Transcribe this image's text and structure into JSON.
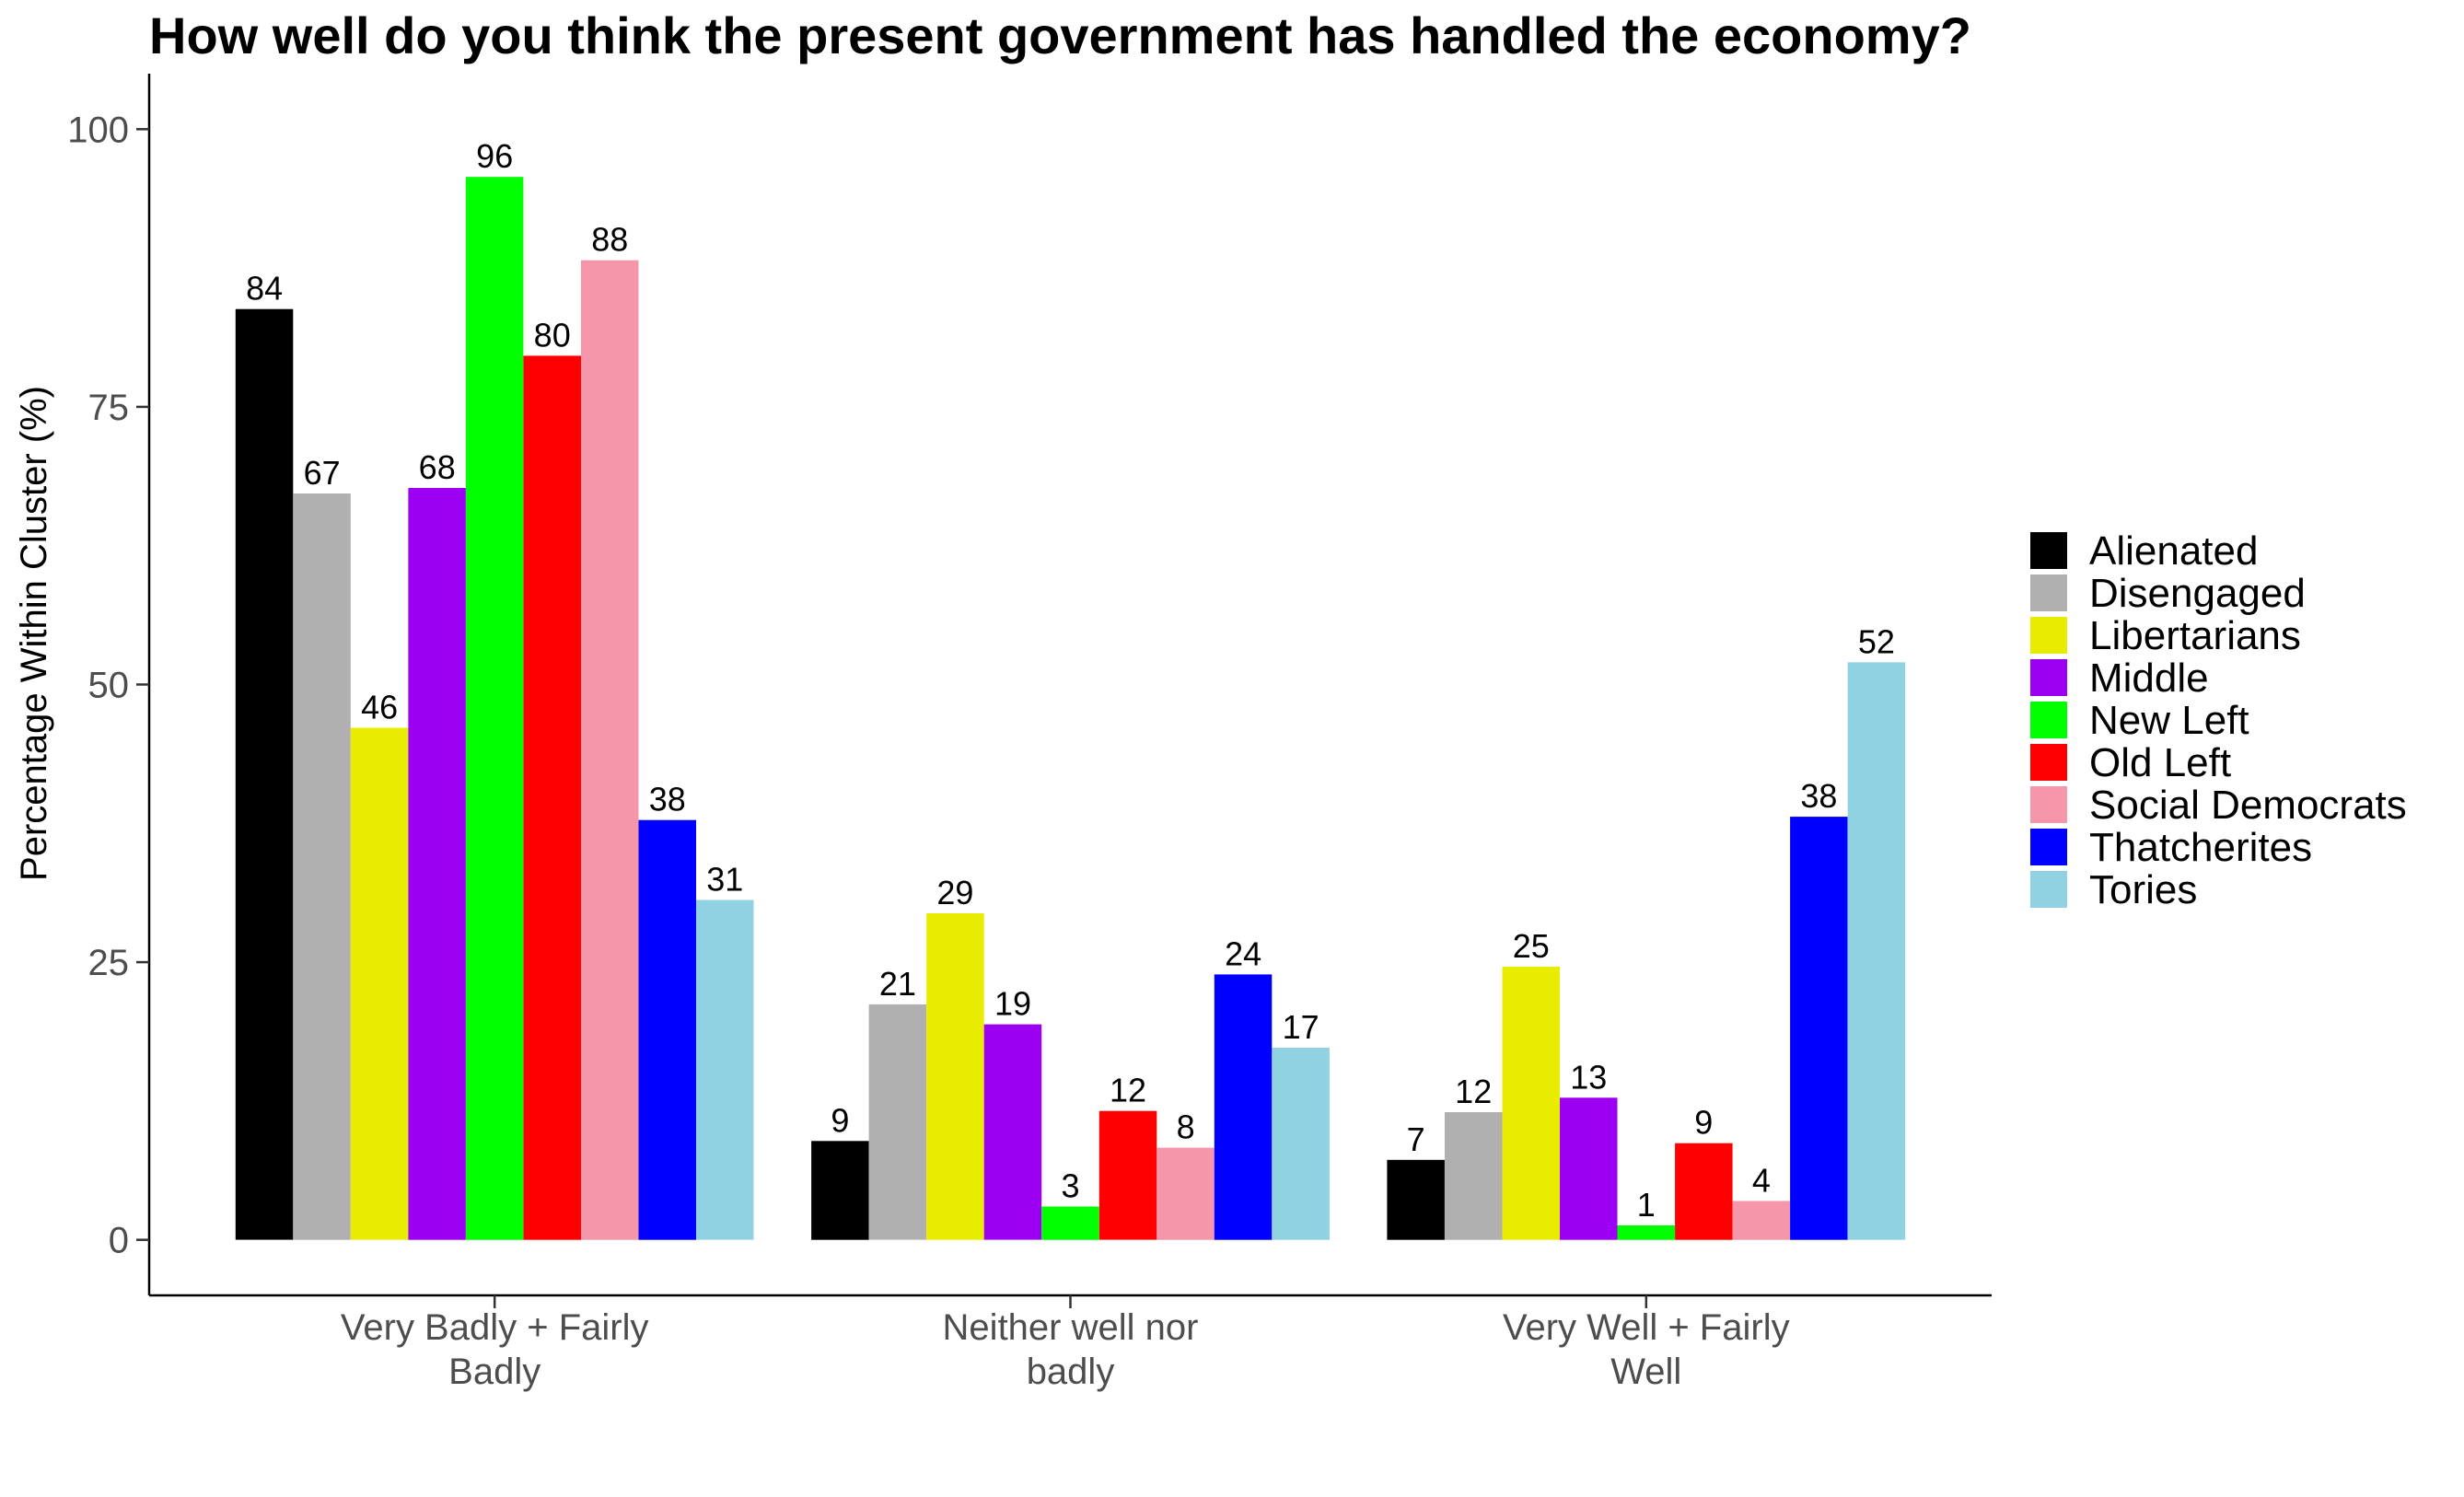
{
  "chart_data": {
    "type": "bar",
    "title": "How well do you think the present government has handled the economy?",
    "xlabel": "",
    "ylabel": "Percentage Within Cluster (%)",
    "ylim": [
      -5,
      105
    ],
    "yticks": [
      0,
      25,
      50,
      75,
      100
    ],
    "grid": false,
    "legend_position": "right",
    "categories": [
      [
        "Very Badly + Fairly",
        "Badly"
      ],
      [
        "Neither well nor",
        "badly"
      ],
      [
        "Very Well + Fairly",
        "Well"
      ]
    ],
    "series": [
      {
        "name": "Alienated",
        "color": "#000000",
        "values": [
          83.8,
          8.9,
          7.2
        ],
        "labels": [
          "84",
          "9",
          "7"
        ]
      },
      {
        "name": "Disengaged",
        "color": "#b0b0b0",
        "values": [
          67.2,
          21.2,
          11.5
        ],
        "labels": [
          "67",
          "21",
          "12"
        ]
      },
      {
        "name": "Libertarians",
        "color": "#e8ec00",
        "values": [
          46.1,
          29.4,
          24.6
        ],
        "labels": [
          "46",
          "29",
          "25"
        ]
      },
      {
        "name": "Middle",
        "color": "#9b00f2",
        "values": [
          67.7,
          19.4,
          12.8
        ],
        "labels": [
          "68",
          "19",
          "13"
        ]
      },
      {
        "name": "New Left",
        "color": "#00ff00",
        "values": [
          95.7,
          3.0,
          1.3
        ],
        "labels": [
          "96",
          "3",
          "1"
        ]
      },
      {
        "name": "Old Left",
        "color": "#ff0000",
        "values": [
          79.6,
          11.6,
          8.7
        ],
        "labels": [
          "80",
          "12",
          "9"
        ]
      },
      {
        "name": "Social Democrats",
        "color": "#f596aa",
        "values": [
          88.2,
          8.3,
          3.5
        ],
        "labels": [
          "88",
          "8",
          "4"
        ]
      },
      {
        "name": "Thatcherites",
        "color": "#0000ff",
        "values": [
          37.8,
          23.9,
          38.1
        ],
        "labels": [
          "38",
          "24",
          "38"
        ]
      },
      {
        "name": "Tories",
        "color": "#90d2e2",
        "values": [
          30.6,
          17.3,
          52.0
        ],
        "labels": [
          "31",
          "17",
          "52"
        ]
      }
    ]
  }
}
